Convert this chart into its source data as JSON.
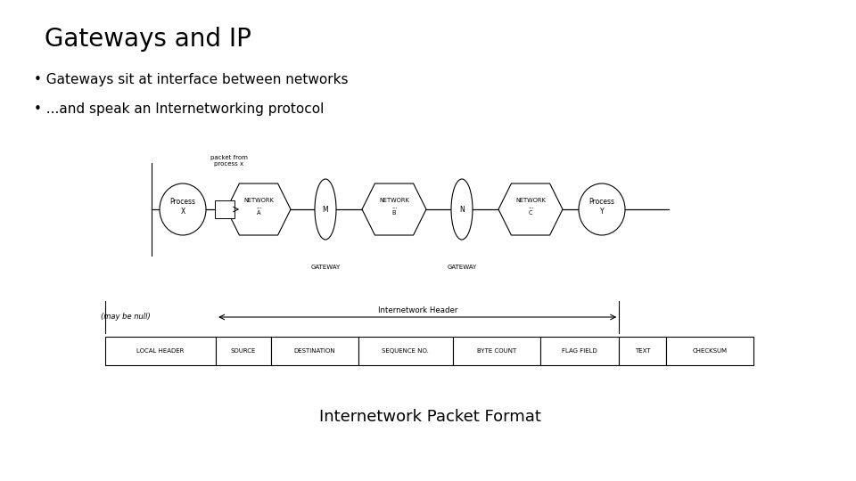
{
  "title": "Gateways and IP",
  "bullet1": "Gateways sit at interface between networks",
  "bullet2": "...and speak an Internetworking protocol",
  "packet_label": "packet from\nprocess x",
  "gateway_label1": "GATEWAY",
  "gateway_label2": "GATEWAY",
  "network_a": "NETWORK\n...\nA",
  "network_b": "NETWORK\n...\nB",
  "network_c": "NETWORK\n...\nC",
  "process_x": "Process\nX",
  "process_y": "Process\nY",
  "gateway_m": "M",
  "gateway_n": "N",
  "may_be_null": "(may be null)",
  "internetwork_header": "Internetwork Header",
  "packet_fields": [
    "LOCAL HEADER",
    "SOURCE",
    "DESTINATION",
    "SEQUENCE NO.",
    "BYTE COUNT",
    "FLAG FIELD",
    "TEXT",
    "CHECKSUM"
  ],
  "packet_widths": [
    1.4,
    0.7,
    1.1,
    1.2,
    1.1,
    1.0,
    0.6,
    1.1
  ],
  "bottom_label": "Internetwork Packet Format",
  "bg_color": "#ffffff",
  "text_color": "#000000",
  "title_fontsize": 20,
  "bullet_fontsize": 11
}
